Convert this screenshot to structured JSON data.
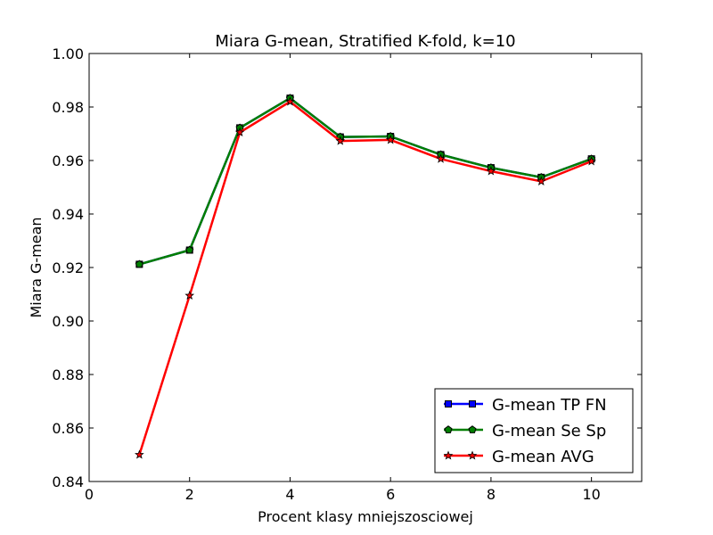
{
  "chart_data": {
    "type": "line",
    "title": "Miara G-mean, Stratified K-fold, k=10",
    "xlabel": "Procent klasy mniejszosciowej",
    "ylabel": "Miara G-mean",
    "xlim": [
      0,
      11
    ],
    "ylim": [
      0.84,
      1.0
    ],
    "xticks": [
      0,
      2,
      4,
      6,
      8,
      10
    ],
    "xtick_labels": [
      "0",
      "2",
      "4",
      "6",
      "8",
      "10"
    ],
    "yticks": [
      0.84,
      0.86,
      0.88,
      0.9,
      0.92,
      0.94,
      0.96,
      0.98,
      1.0
    ],
    "ytick_labels": [
      "0.84",
      "0.86",
      "0.88",
      "0.90",
      "0.92",
      "0.94",
      "0.96",
      "0.98",
      "1.00"
    ],
    "grid": false,
    "legend_position": "lower-right",
    "x": [
      1,
      2,
      3,
      4,
      5,
      6,
      7,
      8,
      9,
      10
    ],
    "series": [
      {
        "name": "G-mean TP FN",
        "color": "#0000ff",
        "marker": "square",
        "values": [
          0.9212,
          0.9265,
          0.9722,
          0.9833,
          0.9688,
          0.969,
          0.9622,
          0.9573,
          0.9537,
          0.9606
        ]
      },
      {
        "name": "G-mean Se Sp",
        "color": "#007f00",
        "marker": "pentagon",
        "values": [
          0.9212,
          0.9265,
          0.9722,
          0.9833,
          0.9688,
          0.969,
          0.9622,
          0.9573,
          0.9537,
          0.9606
        ]
      },
      {
        "name": "G-mean AVG",
        "color": "#ff0000",
        "marker": "star",
        "values": [
          0.85,
          0.9095,
          0.9705,
          0.982,
          0.9673,
          0.9677,
          0.9606,
          0.956,
          0.9522,
          0.9597
        ]
      }
    ]
  }
}
